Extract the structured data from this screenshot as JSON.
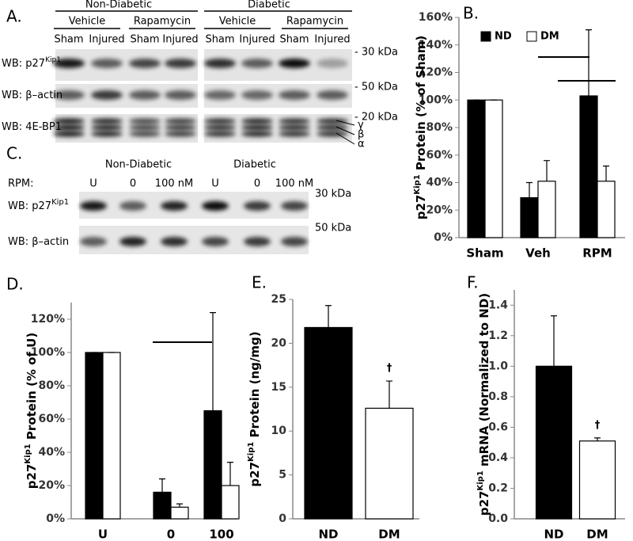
{
  "blots": {
    "panel_a": {
      "label": "A.",
      "groups": [
        "Non-Diabetic",
        "Diabetic"
      ],
      "treatments": [
        "Vehicle",
        "Rapamycin",
        "Vehicle",
        "Rapamycin"
      ],
      "lanes": [
        "Sham",
        "Injured",
        "Sham",
        "Injured",
        "Sham",
        "Injured",
        "Sham",
        "Injured"
      ],
      "rows": [
        {
          "base": "WB: p27",
          "sup": "Kip1",
          "marker": "- 30 kDa"
        },
        {
          "base": "WB: β–actin",
          "marker": "- 50 kDa"
        },
        {
          "base": "WB: 4E-BP1",
          "marker": "- 20 kDa"
        }
      ],
      "isoforms": [
        "γ",
        "β",
        "α"
      ]
    },
    "panel_c": {
      "label": "C.",
      "groups": [
        "Non-Diabetic",
        "Diabetic"
      ],
      "lane_title": "RPM:",
      "lanes": [
        "U",
        "0",
        "100 nM",
        "U",
        "0",
        "100 nM"
      ],
      "rows": [
        {
          "base": "WB: p27",
          "sup": "Kip1",
          "marker": "30 kDa"
        },
        {
          "base": "WB: β–actin",
          "marker": "50 kDa"
        }
      ]
    }
  },
  "chart_data": [
    {
      "type": "bar",
      "panel": "B.",
      "ylabel": {
        "base": "p27",
        "sup": "Kip1",
        "rest": " Protein  (% of Sham)"
      },
      "categories": [
        "Sham",
        "Veh",
        "RPM"
      ],
      "series": [
        {
          "name": "ND",
          "color": "#000000",
          "values": [
            100,
            29,
            103
          ],
          "errors": [
            0,
            11,
            48
          ]
        },
        {
          "name": "DM",
          "color": "#ffffff",
          "values": [
            100,
            41,
            41
          ],
          "errors": [
            0,
            15,
            11
          ]
        }
      ],
      "ylim": [
        0,
        160
      ],
      "yticks": [
        {
          "value": 0,
          "label": "0%"
        },
        {
          "value": 20,
          "label": "20%"
        },
        {
          "value": 40,
          "label": "40%"
        },
        {
          "value": 60,
          "label": "60%"
        },
        {
          "value": 80,
          "label": "80%"
        },
        {
          "value": 100,
          "label": "100%"
        },
        {
          "value": 120,
          "label": "120%"
        },
        {
          "value": 140,
          "label": "140%"
        },
        {
          "value": 160,
          "label": "160%"
        }
      ],
      "legend": "top-left"
    },
    {
      "type": "bar",
      "panel": "D.",
      "ylabel": {
        "base": "p27",
        "sup": "Kip1",
        "rest": " Protein  (% of U)"
      },
      "categories": [
        "U",
        "0",
        "100"
      ],
      "series": [
        {
          "name": "ND",
          "color": "#000000",
          "values": [
            100,
            16,
            65
          ],
          "errors": [
            0,
            8,
            59
          ]
        },
        {
          "name": "DM",
          "color": "#ffffff",
          "values": [
            100,
            7,
            20
          ],
          "errors": [
            0,
            2,
            14
          ]
        }
      ],
      "ylim": [
        0,
        130
      ],
      "yticks": [
        {
          "value": 0,
          "label": "0%"
        },
        {
          "value": 20,
          "label": "20%"
        },
        {
          "value": 40,
          "label": "40%"
        },
        {
          "value": 60,
          "label": "60%"
        },
        {
          "value": 80,
          "label": "80%"
        },
        {
          "value": 100,
          "label": "100%"
        },
        {
          "value": 120,
          "label": "120%"
        }
      ]
    },
    {
      "type": "bar",
      "panel": "E.",
      "ylabel": {
        "base": "p27",
        "sup": "Kip1",
        "rest": " Protein (ng/mg)"
      },
      "categories": [
        "ND",
        "DM"
      ],
      "values": [
        21.8,
        12.6
      ],
      "errors": [
        2.5,
        3.1
      ],
      "colors": [
        "#000000",
        "#ffffff"
      ],
      "annotation": "†",
      "ylim": [
        0,
        25
      ],
      "yticks": [
        0,
        5,
        10,
        15,
        20,
        25
      ]
    },
    {
      "type": "bar",
      "panel": "F.",
      "ylabel": {
        "base": "p27",
        "sup": "Kip1",
        "rest": " mRNA (Normalized to ND)"
      },
      "categories": [
        "ND",
        "DM"
      ],
      "values": [
        1.0,
        0.51
      ],
      "errors": [
        0.33,
        0.02
      ],
      "colors": [
        "#000000",
        "#ffffff"
      ],
      "annotation": "†",
      "ylim": [
        0,
        1.5
      ],
      "yticks": [
        {
          "value": 0,
          "label": "0.0"
        },
        {
          "value": 0.2,
          "label": "0.2"
        },
        {
          "value": 0.4,
          "label": "0.4"
        },
        {
          "value": 0.6,
          "label": "0.6"
        },
        {
          "value": 0.8,
          "label": "0.8"
        },
        {
          "value": 1.0,
          "label": "1.0"
        },
        {
          "value": 1.2,
          "label": "1.2"
        },
        {
          "value": 1.4,
          "label": "1.4"
        }
      ]
    }
  ]
}
